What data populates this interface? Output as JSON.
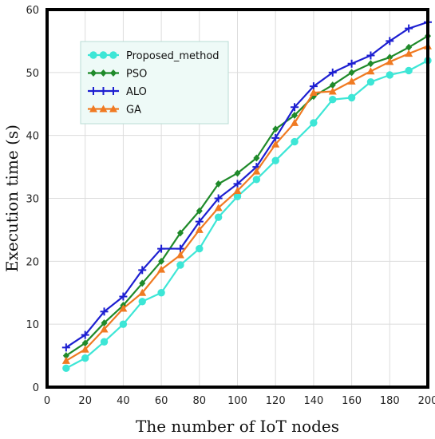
{
  "chart_data": {
    "type": "line",
    "xlabel": "The number of IoT nodes",
    "ylabel": "Execution time (s)",
    "xlim": [
      0,
      200
    ],
    "ylim": [
      0,
      60
    ],
    "xticks": [
      0,
      20,
      40,
      60,
      80,
      100,
      120,
      140,
      160,
      180,
      200
    ],
    "yticks": [
      0,
      10,
      20,
      30,
      40,
      50,
      60
    ],
    "grid": true,
    "legend_position": "top-left",
    "x": [
      10,
      20,
      30,
      40,
      50,
      60,
      70,
      80,
      90,
      100,
      110,
      120,
      130,
      140,
      150,
      160,
      170,
      180,
      190,
      200
    ],
    "series": [
      {
        "name": "Proposed_method",
        "color": "#3de6d6",
        "marker": "circle",
        "values": [
          3.0,
          4.6,
          7.2,
          10.0,
          13.6,
          15.0,
          19.4,
          22.0,
          27.0,
          30.3,
          33.0,
          36.0,
          39.0,
          42.0,
          45.7,
          46.0,
          48.5,
          49.6,
          50.3,
          51.9
        ]
      },
      {
        "name": "PSO",
        "color": "#1f8a2a",
        "marker": "diamond",
        "values": [
          5.0,
          7.0,
          10.2,
          13.0,
          16.5,
          20.0,
          24.5,
          28.0,
          32.3,
          34.0,
          36.4,
          41.0,
          43.2,
          46.2,
          48.0,
          50.0,
          51.4,
          52.4,
          54.0,
          55.8
        ]
      },
      {
        "name": "ALO",
        "color": "#1d1fd1",
        "marker": "plus",
        "values": [
          6.3,
          8.3,
          12.0,
          14.4,
          18.6,
          22.0,
          22.0,
          26.3,
          30.0,
          32.3,
          35.0,
          39.6,
          44.5,
          47.8,
          50.0,
          51.4,
          52.7,
          55.0,
          57.0,
          58.0
        ]
      },
      {
        "name": "GA",
        "color": "#f07a22",
        "marker": "triangle",
        "values": [
          4.2,
          6.0,
          9.2,
          12.5,
          15.0,
          18.7,
          21.0,
          25.0,
          28.5,
          31.2,
          34.3,
          38.6,
          42.0,
          46.8,
          47.0,
          48.6,
          50.2,
          51.7,
          53.0,
          54.2
        ]
      }
    ]
  }
}
